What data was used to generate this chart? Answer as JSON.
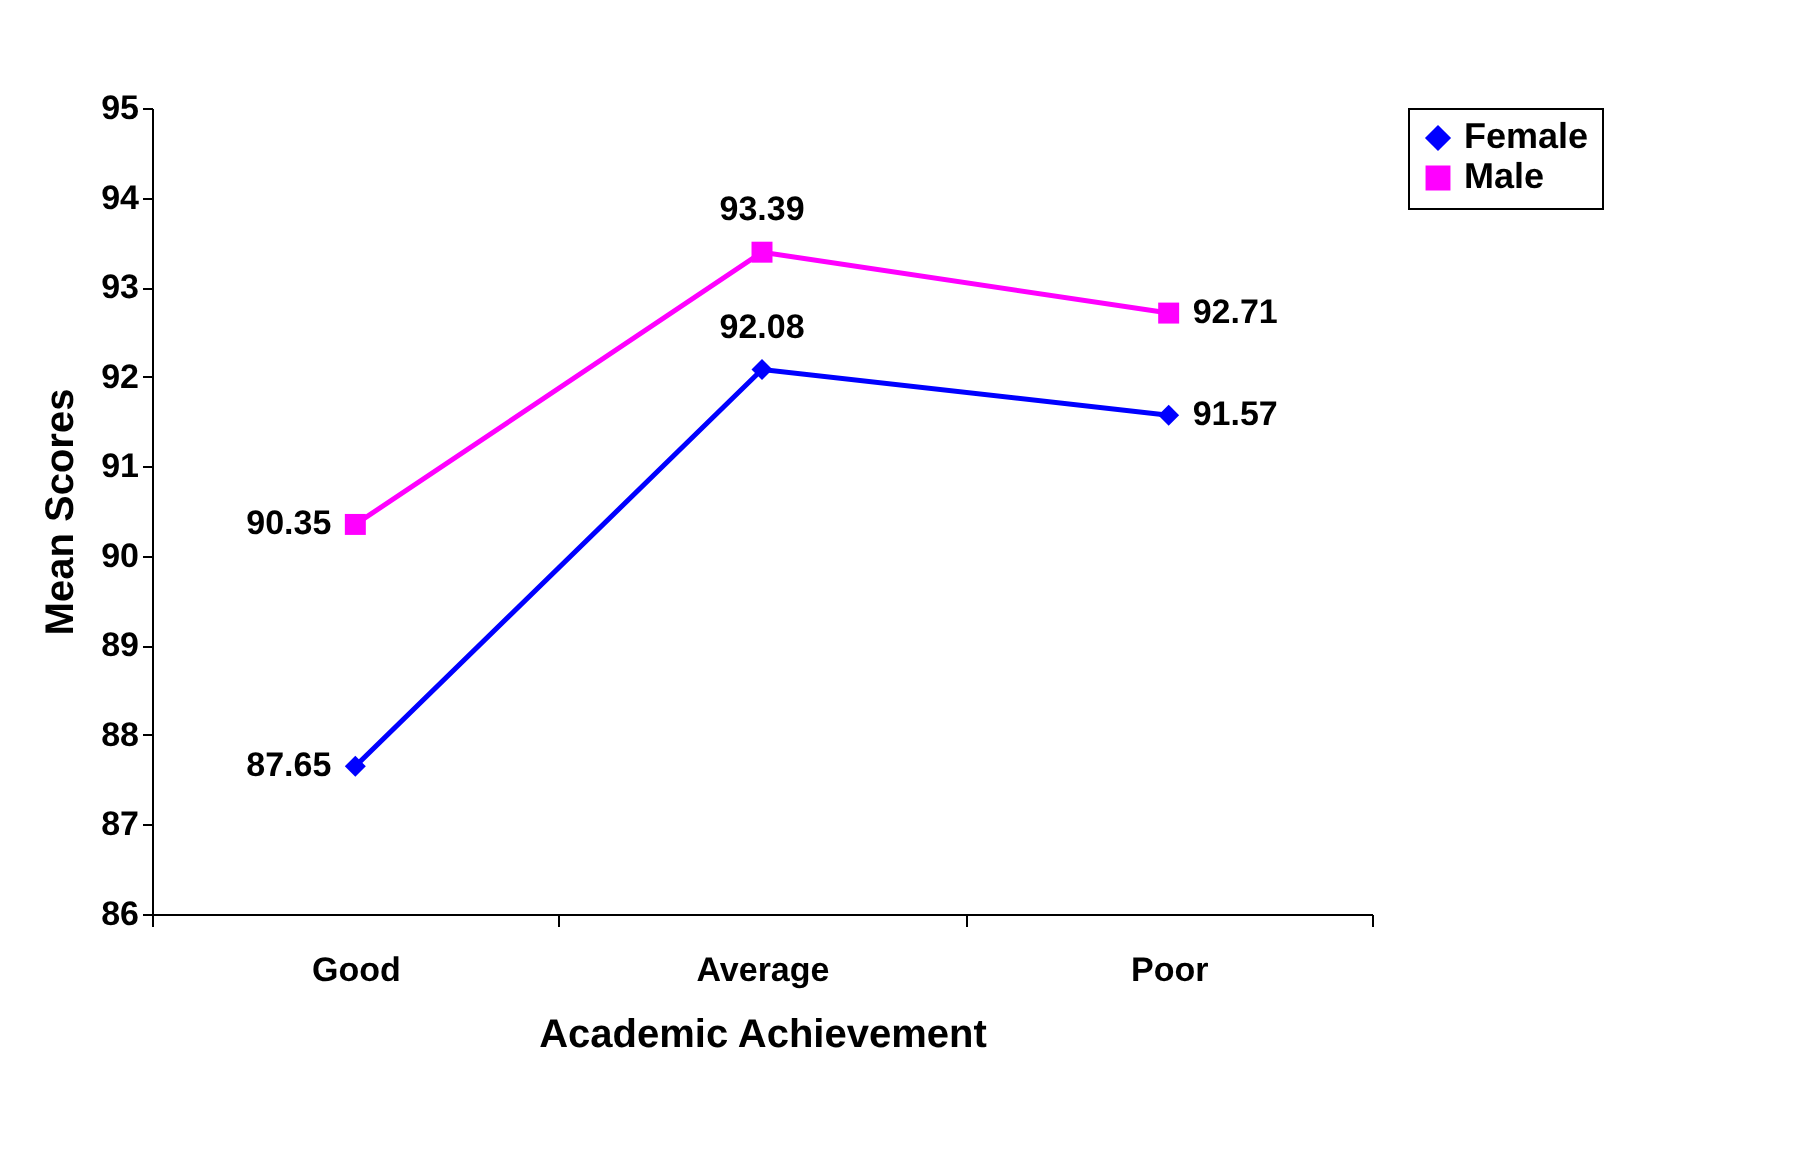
{
  "chart_data": {
    "type": "line",
    "xlabel": "Academic Achievement",
    "ylabel": "Mean Scores",
    "categories": [
      "Good",
      "Average",
      "Poor"
    ],
    "series": [
      {
        "name": "Female",
        "color": "#0000ff",
        "marker": "diamond",
        "values": [
          87.65,
          92.08,
          91.57
        ]
      },
      {
        "name": "Male",
        "color": "#ff00ff",
        "marker": "square",
        "values": [
          90.35,
          93.39,
          92.71
        ]
      }
    ],
    "ylim": [
      86,
      95
    ],
    "yticks": [
      86,
      87,
      88,
      89,
      90,
      91,
      92,
      93,
      94,
      95
    ],
    "grid": false,
    "legend": "right",
    "data_labels": true
  }
}
